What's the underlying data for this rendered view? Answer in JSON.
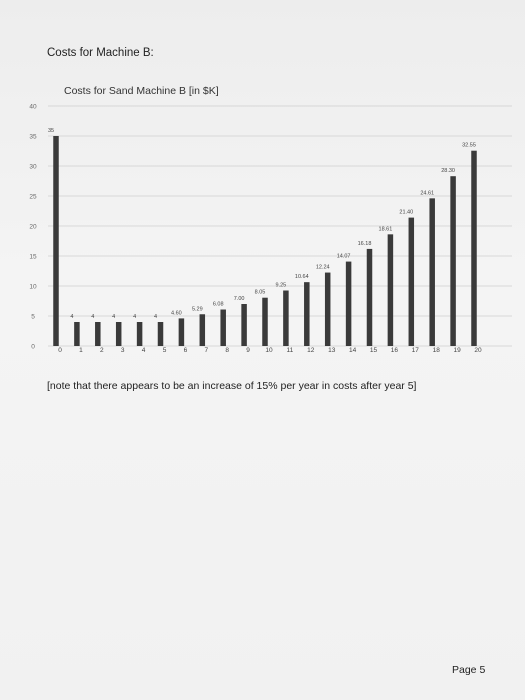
{
  "heading": "Costs for Machine B:",
  "note": "[note that there appears to be an increase of 15% per year in costs after year 5]",
  "page_number": "Page 5",
  "chart_data": {
    "type": "bar",
    "title": "Costs for Sand Machine B [in $K]",
    "xlabel": "",
    "ylabel": "",
    "categories": [
      "0",
      "1",
      "2",
      "3",
      "4",
      "5",
      "6",
      "7",
      "8",
      "9",
      "10",
      "11",
      "12",
      "13",
      "14",
      "15",
      "16",
      "17",
      "18",
      "19",
      "20"
    ],
    "values": [
      35,
      4,
      4,
      4,
      4,
      4,
      4.6,
      5.29,
      6.08,
      7.0,
      8.05,
      9.25,
      10.64,
      12.24,
      14.07,
      16.18,
      18.61,
      21.4,
      24.61,
      28.3,
      32.55
    ],
    "data_labels": [
      "35",
      "4",
      "4",
      "4",
      "4",
      "4",
      "4.60",
      "5.29",
      "6.08",
      "7.00",
      "8.05",
      "9.25",
      "10.64",
      "12.24",
      "14.07",
      "16.18",
      "18.61",
      "21.40",
      "24.61",
      "28.30",
      "32.55"
    ],
    "yticks": [
      0,
      5,
      10,
      15,
      20,
      25,
      30,
      35,
      40
    ],
    "ylim": [
      0,
      40
    ],
    "grid": true,
    "bar_color": "#3a3a3a"
  }
}
